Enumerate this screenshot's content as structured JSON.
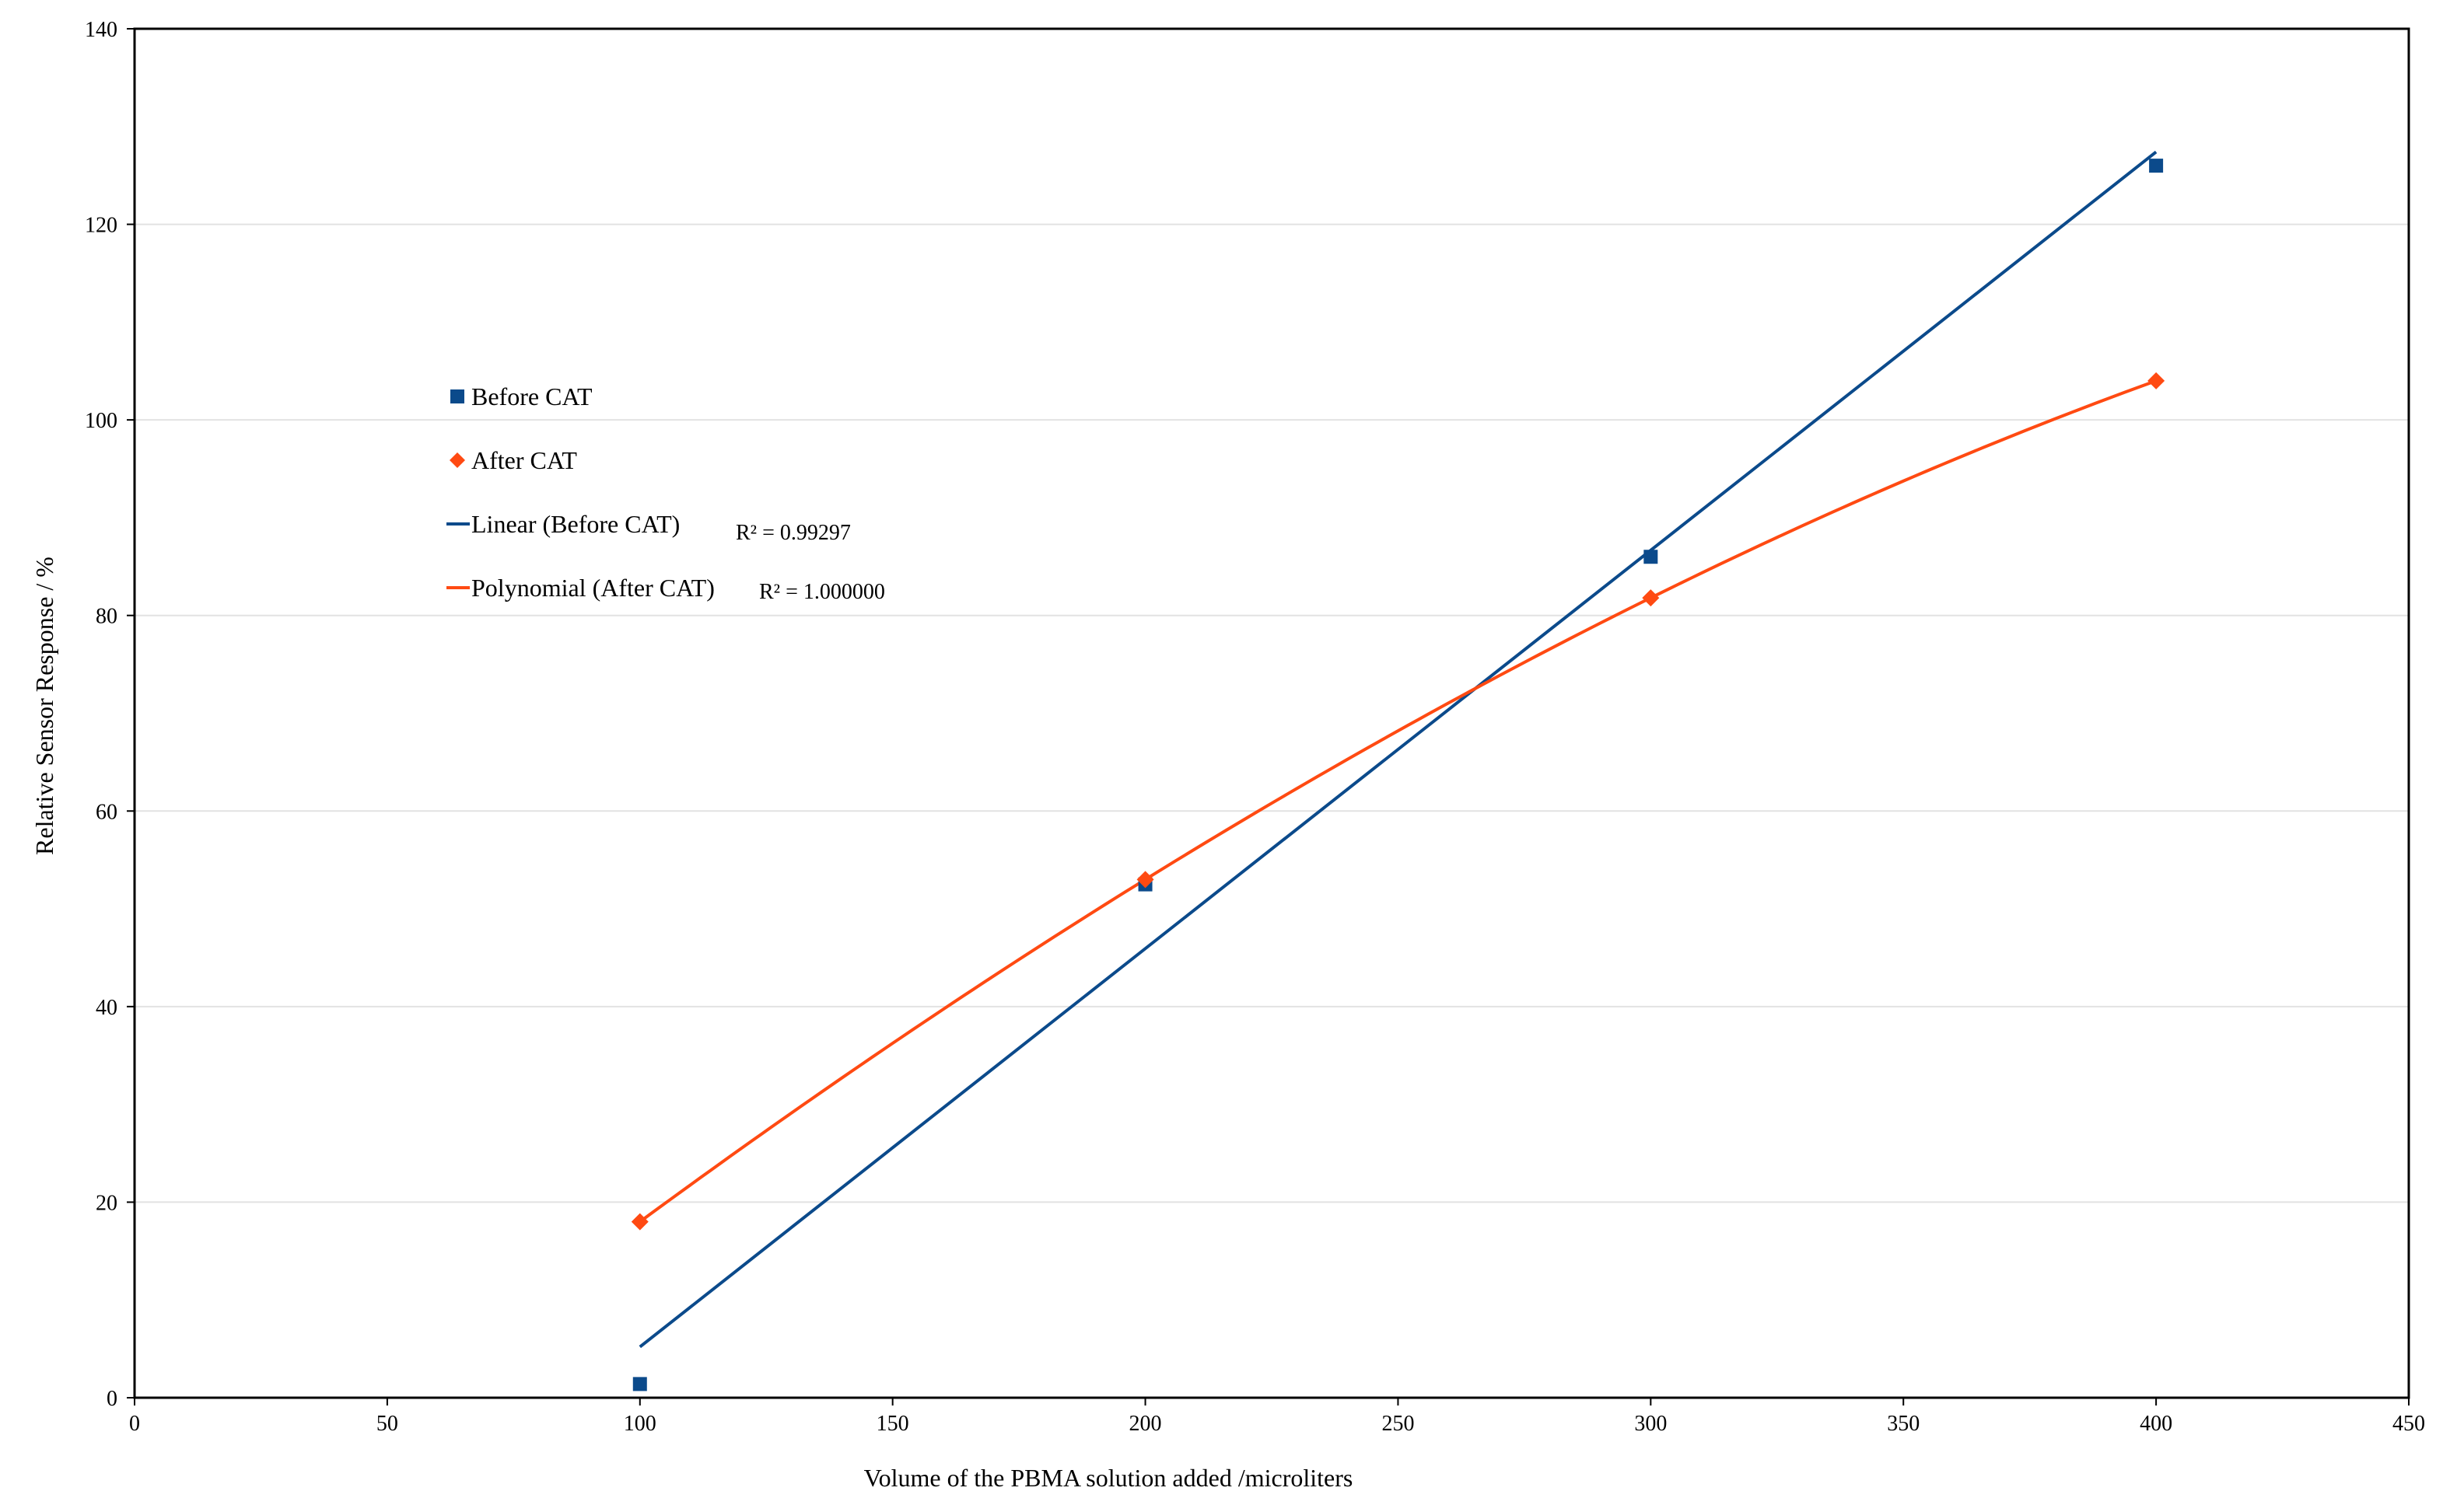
{
  "chart_data": {
    "type": "scatter",
    "title": "",
    "xlabel": "Volume of the PBMA solution added /microliters",
    "ylabel": "Relative Sensor Response / %",
    "xlim": [
      0,
      450
    ],
    "ylim": [
      0,
      140
    ],
    "x_ticks": [
      "0",
      "50",
      "100",
      "150",
      "200",
      "250",
      "300",
      "350",
      "400",
      "450"
    ],
    "y_ticks": [
      "0",
      "20",
      "40",
      "60",
      "80",
      "100",
      "120",
      "140"
    ],
    "grid": "horizontal",
    "legend_position": "upper-left",
    "series": [
      {
        "name": "Before CAT",
        "marker": "square",
        "color": "#0b4a8b",
        "x": [
          100,
          200,
          300,
          400
        ],
        "y": [
          1.4,
          52.5,
          86,
          126
        ]
      },
      {
        "name": "After CAT",
        "marker": "diamond",
        "color": "#ff4a12",
        "x": [
          100,
          200,
          300,
          400
        ],
        "y": [
          18,
          53,
          81.8,
          104
        ]
      }
    ],
    "trendlines": [
      {
        "name": "Linear (Before CAT)",
        "kind": "linear",
        "color": "#0b4a8b",
        "r2": "R² = 0.99297",
        "x": [
          100,
          400
        ],
        "y": [
          5.2,
          127.4
        ]
      },
      {
        "name": "Polynomial (After CAT)",
        "kind": "polynomial",
        "color": "#ff4a12",
        "r2": "R² = 1.000000",
        "x": [
          100,
          200,
          300,
          400
        ],
        "y": [
          18,
          53,
          81.8,
          104
        ]
      }
    ]
  }
}
